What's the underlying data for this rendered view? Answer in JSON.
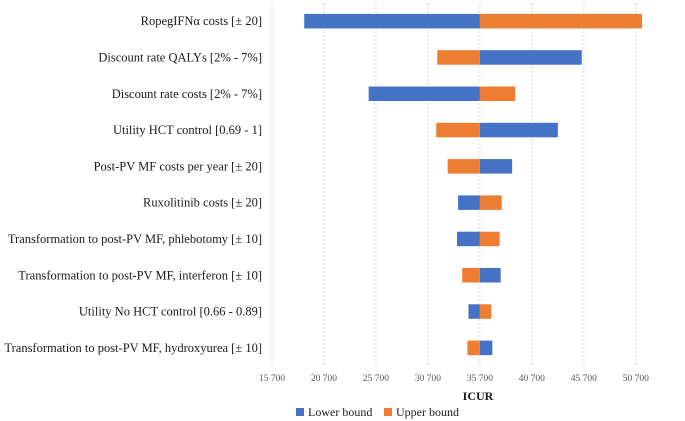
{
  "chart_data": {
    "type": "tornado",
    "title": "",
    "xlabel": "ICUR",
    "ylabel": "",
    "baseline": 35700,
    "xlim": [
      15700,
      53700
    ],
    "xticks": [
      15700,
      20700,
      25700,
      30700,
      35700,
      40700,
      45700,
      50700
    ],
    "xtick_labels": [
      "15 700",
      "20 700",
      "25 700",
      "30 700",
      "35 700",
      "40 700",
      "45 700",
      "50 700"
    ],
    "grid": "vertical-dashed",
    "legend_position": "bottom-center",
    "categories": [
      "RopegIFNα costs [± 20]",
      "Discount rate QALYs [2% - 7%]",
      "Discount rate costs [2% - 7%]",
      "Utility HCT control [0.69 - 1]",
      "Post-PV MF costs per year [± 20]",
      "Ruxolitinib costs [± 20]",
      "Transformation to post-PV MF, phlebotomy [± 10]",
      "Transformation to post-PV MF, interferon [± 10]",
      "Utility No HCT control [0.66 - 0.89]",
      "Transformation to post-PV MF, hydroxyurea [± 10]"
    ],
    "series": [
      {
        "name": "Lower bound",
        "color": "#4472C4",
        "values": [
          18800,
          45500,
          25000,
          43200,
          38800,
          33600,
          33500,
          37700,
          34600,
          36900
        ]
      },
      {
        "name": "Upper bound",
        "color": "#ED7D31",
        "values": [
          51300,
          31600,
          39100,
          31500,
          32600,
          37800,
          37600,
          34000,
          36800,
          34500
        ]
      }
    ]
  }
}
